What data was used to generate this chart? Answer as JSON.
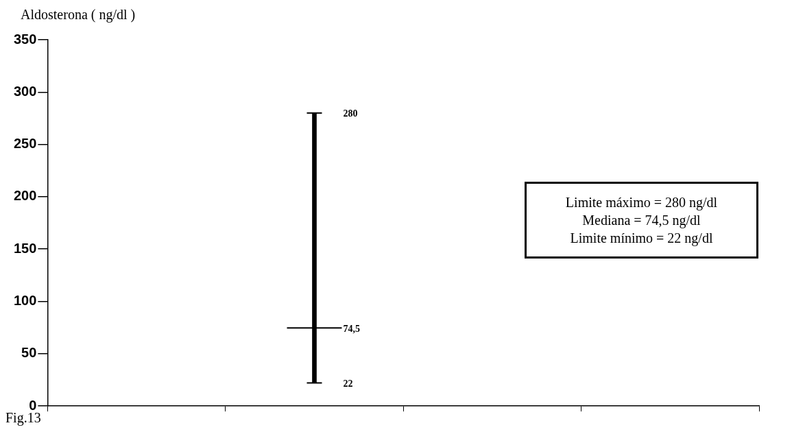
{
  "chart_data": {
    "type": "bar",
    "stacked": true,
    "ylabel": "Aldosterona ( ng/dl )",
    "categories": [
      null,
      null,
      null,
      null
    ],
    "series": [
      {
        "color": "#000000",
        "base": [
          null,
          22,
          null,
          null
        ],
        "values": [
          null,
          52.5,
          null,
          null
        ]
      },
      {
        "color": "#000000",
        "values": [
          null,
          205.5,
          null,
          null
        ]
      }
    ],
    "ylim": [
      0,
      350
    ],
    "yticks": [
      0,
      50,
      100,
      150,
      200,
      250,
      300,
      350
    ],
    "grid": false,
    "legend": false,
    "tick_labels": "y",
    "annotations": [
      "280",
      "74,5",
      "22",
      "Limite máximo = 280 ng/dl\nMediana = 74,5 ng/dl\nLimite mínimo = 22 ng/dl",
      "Fig.13"
    ]
  }
}
